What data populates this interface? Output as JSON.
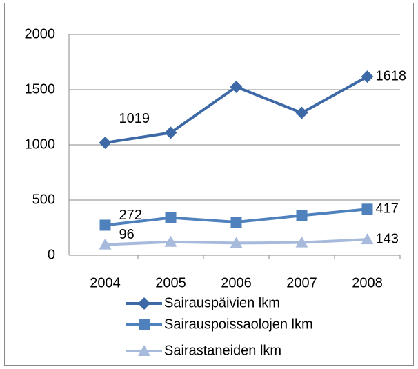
{
  "chart_data": {
    "type": "line",
    "categories": [
      "2004",
      "2005",
      "2006",
      "2007",
      "2008"
    ],
    "series": [
      {
        "name": "Sairauspäivien lkm",
        "color": "#3d69a6",
        "marker": "diamond",
        "values": [
          1019,
          1110,
          1525,
          1290,
          1618
        ]
      },
      {
        "name": "Sairauspoissaolojen lkm",
        "color": "#4f81bd",
        "marker": "square",
        "values": [
          272,
          340,
          300,
          360,
          417
        ]
      },
      {
        "name": "Sairastaneiden lkm",
        "color": "#a7badc",
        "marker": "triangle",
        "values": [
          96,
          120,
          110,
          115,
          143
        ]
      }
    ],
    "ylim": [
      0,
      2000
    ],
    "yticks": [
      0,
      500,
      1000,
      1500,
      2000
    ],
    "grid": true,
    "data_labels": "ends",
    "legend": "bottom"
  }
}
